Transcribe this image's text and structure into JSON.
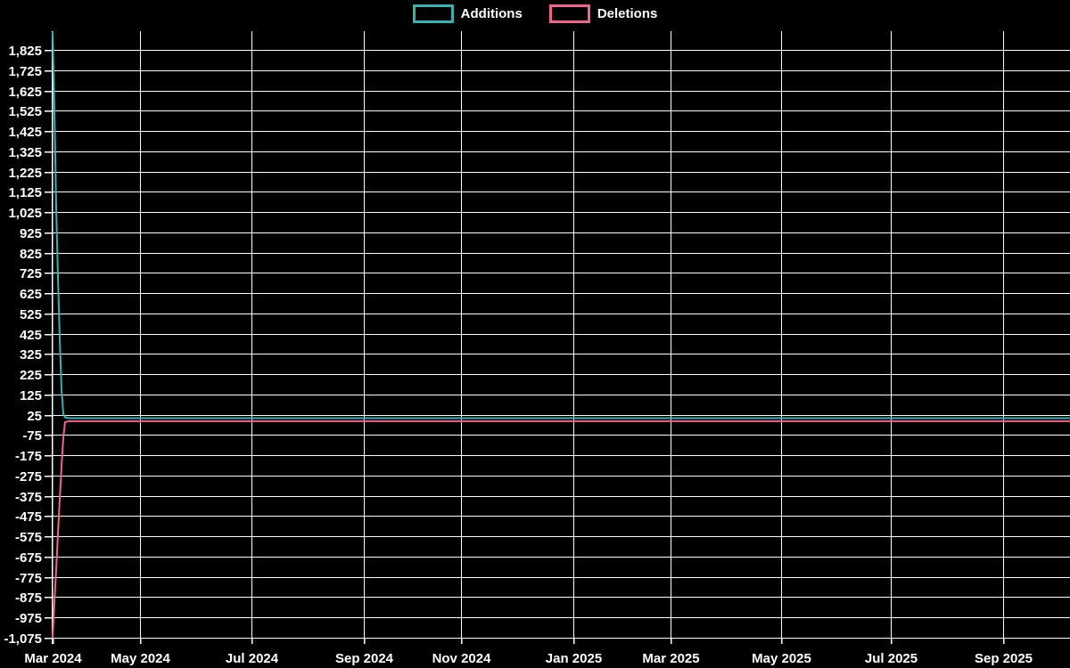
{
  "legend": {
    "items": [
      {
        "label": "Additions",
        "color": "#35b2b2"
      },
      {
        "label": "Deletions",
        "color": "#f2638a"
      }
    ]
  },
  "colors": {
    "background": "#000000",
    "grid": "#ffffff",
    "axis": "#ffffff",
    "text": "#ffffff",
    "additions": "#35b2b2",
    "deletions": "#f2638a"
  },
  "chart_data": {
    "type": "line",
    "title": "",
    "xlabel": "",
    "ylabel": "",
    "grid": true,
    "legend_position": "top-center",
    "x_axis": {
      "unit": "days-from-start",
      "ticks": [
        {
          "label": "Mar 2024",
          "day": 0
        },
        {
          "label": "May 2024",
          "day": 49
        },
        {
          "label": "Jul 2024",
          "day": 112
        },
        {
          "label": "Sep 2024",
          "day": 175
        },
        {
          "label": "Nov 2024",
          "day": 230
        },
        {
          "label": "Jan 2025",
          "day": 293
        },
        {
          "label": "Mar 2025",
          "day": 348
        },
        {
          "label": "May 2025",
          "day": 410
        },
        {
          "label": "Jul 2025",
          "day": 472
        },
        {
          "label": "Sep 2025",
          "day": 535
        }
      ],
      "day_max": 573
    },
    "y_axis": {
      "tick_labels": [
        "1,825",
        "1,725",
        "1,625",
        "1,525",
        "1,425",
        "1,325",
        "1,225",
        "1,125",
        "1,025",
        "925",
        "825",
        "725",
        "625",
        "525",
        "425",
        "325",
        "225",
        "125",
        "25",
        "-75",
        "-175",
        "-275",
        "-375",
        "-475",
        "-575",
        "-675",
        "-775",
        "-875",
        "-975",
        "-1,075"
      ],
      "tick_values": [
        1825,
        1725,
        1625,
        1525,
        1425,
        1325,
        1225,
        1125,
        1025,
        925,
        825,
        725,
        625,
        525,
        425,
        325,
        225,
        125,
        25,
        -75,
        -175,
        -275,
        -375,
        -475,
        -575,
        -675,
        -775,
        -875,
        -975,
        -1075
      ],
      "min": -1079,
      "max": 1917
    },
    "series": [
      {
        "name": "Additions",
        "color": "#35b2b2",
        "points": [
          [
            0,
            1910
          ],
          [
            1,
            1540
          ],
          [
            2,
            1050
          ],
          [
            3,
            700
          ],
          [
            4,
            400
          ],
          [
            5,
            150
          ],
          [
            6,
            30
          ],
          [
            7,
            12
          ],
          [
            9,
            8
          ],
          [
            573,
            8
          ]
        ]
      },
      {
        "name": "Deletions",
        "color": "#f2638a",
        "points": [
          [
            0,
            -1075
          ],
          [
            1,
            -900
          ],
          [
            2,
            -740
          ],
          [
            3,
            -560
          ],
          [
            4,
            -390
          ],
          [
            5,
            -230
          ],
          [
            6,
            -90
          ],
          [
            7,
            -12
          ],
          [
            9,
            -7
          ],
          [
            573,
            -7
          ]
        ]
      }
    ]
  }
}
